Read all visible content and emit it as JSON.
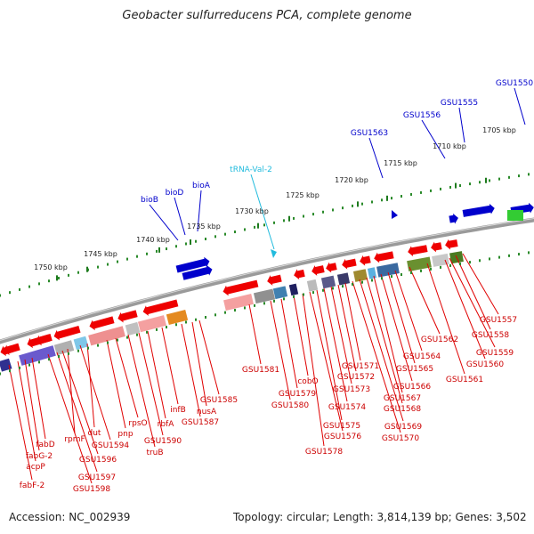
{
  "title": "Geobacter sulfurreducens PCA, complete genome",
  "footer": {
    "accession": "Accession: NC_002939",
    "summary": "Topology: circular; Length: 3,814,139 bp; Genes: 3,502"
  },
  "colors": {
    "gene_forward": "#0000cc",
    "gene_reverse": "#ee0000",
    "trna": "#22bbdd",
    "scale_dots": "#2a8a2a",
    "backbone": "#888888"
  },
  "scale_labels": [
    "1705 kbp",
    "1710 kbp",
    "1715 kbp",
    "1720 kbp",
    "1725 kbp",
    "1730 kbp",
    "1735 kbp",
    "1740 kbp",
    "1745 kbp",
    "1750 kbp"
  ],
  "forward_labels": [
    "GSU1550",
    "GSU1555",
    "GSU1556",
    "GSU1563",
    "tRNA-Val-2",
    "bioA",
    "bioD",
    "bioB"
  ],
  "reverse_labels": [
    "GSU1557",
    "GSU1558",
    "GSU1559",
    "GSU1560",
    "GSU1561",
    "GSU1562",
    "GSU1564",
    "GSU1565",
    "GSU1566",
    "GSU1567",
    "GSU1568",
    "GSU1569",
    "GSU1570",
    "GSU1571",
    "GSU1572",
    "GSU1573",
    "GSU1574",
    "GSU1575",
    "GSU1576",
    "GSU1578",
    "cobO",
    "GSU1579",
    "GSU1580",
    "GSU1581",
    "GSU1585",
    "nusA",
    "GSU1587",
    "infB",
    "rbfA",
    "GSU1590",
    "truB",
    "rpsO",
    "pnp",
    "dut",
    "GSU1594",
    "rpmF",
    "GSU1596",
    "GSU1597",
    "GSU1598",
    "fabD",
    "fabG-2",
    "acpP",
    "fabF-2"
  ]
}
